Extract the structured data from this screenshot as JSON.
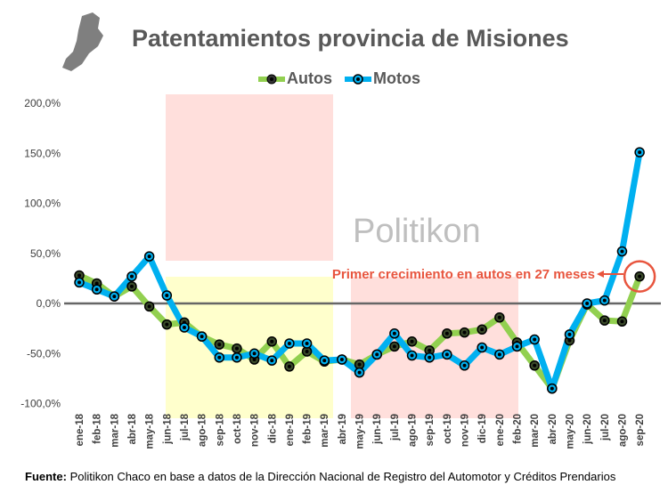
{
  "chart_data": {
    "type": "line",
    "title": "Patentamientos provincia de Misiones",
    "categories": [
      "ene-18",
      "feb-18",
      "mar-18",
      "abr-18",
      "may-18",
      "jun-18",
      "jul-18",
      "ago-18",
      "sep-18",
      "oct-18",
      "nov-18",
      "dic-18",
      "ene-19",
      "feb-19",
      "mar-19",
      "abr-19",
      "may-19",
      "jun-19",
      "jul-19",
      "ago-19",
      "sep-19",
      "oct-19",
      "nov-19",
      "dic-19",
      "ene-20",
      "feb-20",
      "mar-20",
      "abr-20",
      "may-20",
      "jun-20",
      "jul-20",
      "ago-20",
      "sep-20"
    ],
    "series": [
      {
        "name": "Autos",
        "color": "#92d050",
        "values": [
          28,
          20,
          7,
          17,
          -3,
          -21,
          -19,
          -33,
          -41,
          -45,
          -56,
          -38,
          -63,
          -48,
          -58,
          -56,
          -61,
          -51,
          -43,
          -38,
          -47,
          -30,
          -29,
          -26,
          -14,
          -39,
          -62,
          -85,
          -37,
          -1,
          -17,
          -18,
          27
        ]
      },
      {
        "name": "Motos",
        "color": "#00b0f0",
        "values": [
          21,
          14,
          7,
          27,
          47,
          8,
          -24,
          -33,
          -54,
          -54,
          -50,
          -57,
          -40,
          -40,
          -57,
          -56,
          -69,
          -51,
          -30,
          -52,
          -54,
          -51,
          -62,
          -44,
          -51,
          -43,
          -36,
          -85,
          -31,
          0,
          3,
          52,
          151
        ]
      }
    ],
    "ylim": [
      -100,
      200
    ],
    "yticks": [
      -100,
      -50,
      0,
      50,
      100,
      150,
      200
    ],
    "ytick_labels": [
      "-100,0%",
      "-50,0%",
      "0,0%",
      "50,0%",
      "100,0%",
      "150,0%",
      "200,0%"
    ],
    "grid": false,
    "legend_placement": "top",
    "annotation": "Primer crecimiento en autos en 27 meses",
    "annotation_color": "#e8553e",
    "watermark": "Politikon"
  },
  "source_label": "Fuente:",
  "source_text": " Politikon Chaco en base a datos de la Dirección Nacional de Registro del Automotor  y Créditos Prendarios"
}
